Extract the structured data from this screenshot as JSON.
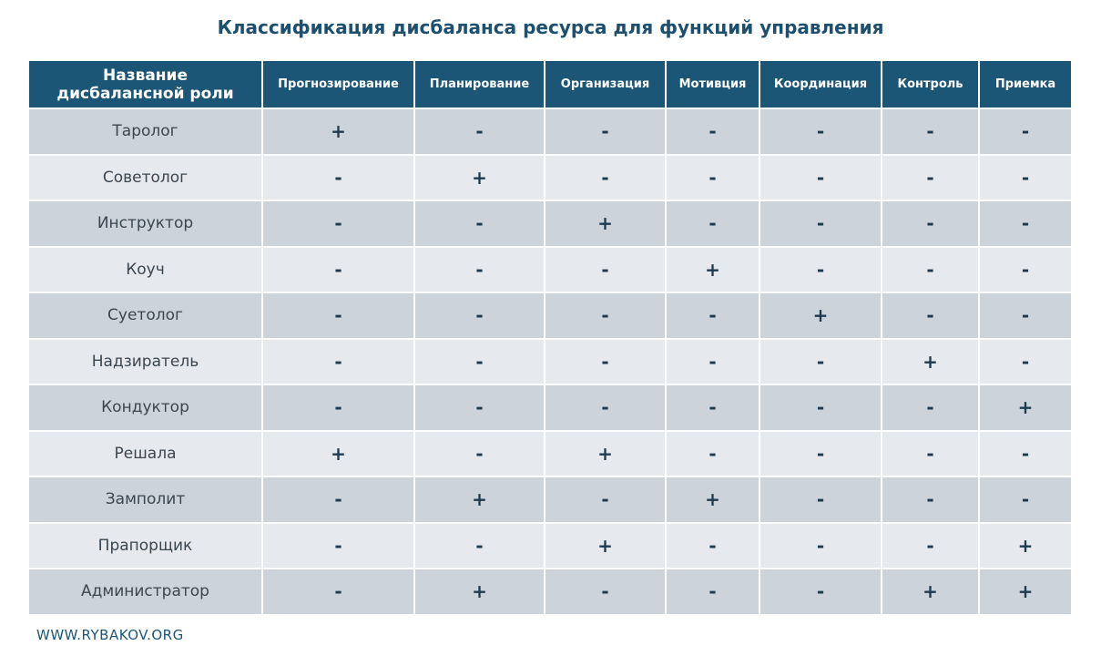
{
  "header": {
    "title": "Классификация дисбаланса ресурса для функций управления"
  },
  "table": {
    "columns": [
      "Название\nдисбалансной роли",
      "Прогнозирование",
      "Планирование",
      "Организация",
      "Мотивция",
      "Координация",
      "Контроль",
      "Приемка"
    ],
    "rows": [
      [
        "Таролог",
        "+",
        "-",
        "-",
        "-",
        "-",
        "-",
        "-"
      ],
      [
        "Советолог",
        "-",
        "+",
        "-",
        "-",
        "-",
        "-",
        "-"
      ],
      [
        "Инструктор",
        "-",
        "-",
        "+",
        "-",
        "-",
        "-",
        "-"
      ],
      [
        "Коуч",
        "-",
        "-",
        "-",
        "+",
        "-",
        "-",
        "-"
      ],
      [
        "Суетолог",
        "-",
        "-",
        "-",
        "-",
        "+",
        "-",
        "-"
      ],
      [
        "Надзиратель",
        "-",
        "-",
        "-",
        "-",
        "-",
        "+",
        "-"
      ],
      [
        "Кондуктор",
        "-",
        "-",
        "-",
        "-",
        "-",
        "-",
        "+"
      ],
      [
        "Решала",
        "+",
        "-",
        "+",
        "-",
        "-",
        "-",
        "-"
      ],
      [
        "Замполит",
        "-",
        "+",
        "-",
        "+",
        "-",
        "-",
        "-"
      ],
      [
        "Прапорщик",
        "-",
        "-",
        "+",
        "-",
        "-",
        "-",
        "+"
      ],
      [
        "Администратор",
        "-",
        "+",
        "-",
        "-",
        "-",
        "+",
        "+"
      ]
    ]
  },
  "footer": {
    "site": "WWW.RYBAKOV.ORG"
  }
}
